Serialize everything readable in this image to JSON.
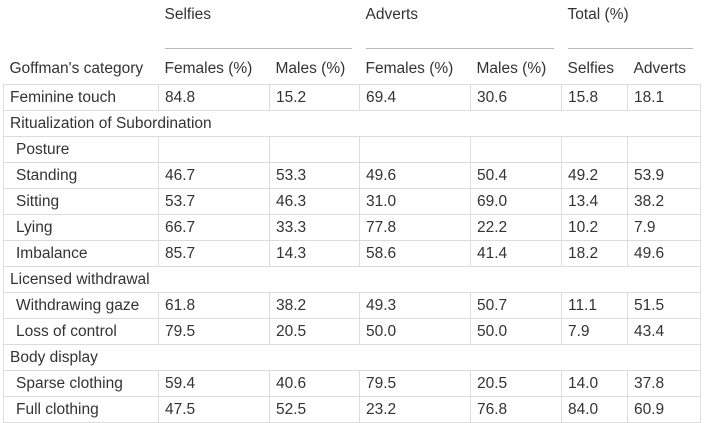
{
  "groups": {
    "selfies": "Selfies",
    "adverts": "Adverts",
    "total": "Total (%)"
  },
  "headers": {
    "category": "Goffman's category",
    "selfies_females": "Females (%)",
    "selfies_males": "Males (%)",
    "adverts_females": "Females (%)",
    "adverts_males": "Males (%)",
    "total_selfies": "Selfies",
    "total_adverts": "Adverts"
  },
  "rows": {
    "feminine_touch": {
      "label": "Feminine touch",
      "v": [
        "84.8",
        "15.2",
        "69.4",
        "30.6",
        "15.8",
        "18.1"
      ]
    },
    "ritualization": {
      "label": "Ritualization of Subordination"
    },
    "posture": {
      "label": "Posture"
    },
    "standing": {
      "label": "Standing",
      "v": [
        "46.7",
        "53.3",
        "49.6",
        "50.4",
        "49.2",
        "53.9"
      ]
    },
    "sitting": {
      "label": "Sitting",
      "v": [
        "53.7",
        "46.3",
        "31.0",
        "69.0",
        "13.4",
        "38.2"
      ]
    },
    "lying": {
      "label": "Lying",
      "v": [
        "66.7",
        "33.3",
        "77.8",
        "22.2",
        "10.2",
        "7.9"
      ]
    },
    "imbalance": {
      "label": "Imbalance",
      "v": [
        "85.7",
        "14.3",
        "58.6",
        "41.4",
        "18.2",
        "49.6"
      ]
    },
    "licensed_withdrawal": {
      "label": "Licensed withdrawal"
    },
    "withdrawing_gaze": {
      "label": "Withdrawing gaze",
      "v": [
        "61.8",
        "38.2",
        "49.3",
        "50.7",
        "11.1",
        "51.5"
      ]
    },
    "loss_of_control": {
      "label": "Loss of control",
      "v": [
        "79.5",
        "20.5",
        "50.0",
        "50.0",
        "7.9",
        "43.4"
      ]
    },
    "body_display": {
      "label": "Body display"
    },
    "sparse_clothing": {
      "label": "Sparse clothing",
      "v": [
        "59.4",
        "40.6",
        "79.5",
        "20.5",
        "14.0",
        "37.8"
      ]
    },
    "full_clothing": {
      "label": "Full clothing",
      "v": [
        "47.5",
        "52.5",
        "23.2",
        "76.8",
        "84.0",
        "60.9"
      ]
    }
  }
}
